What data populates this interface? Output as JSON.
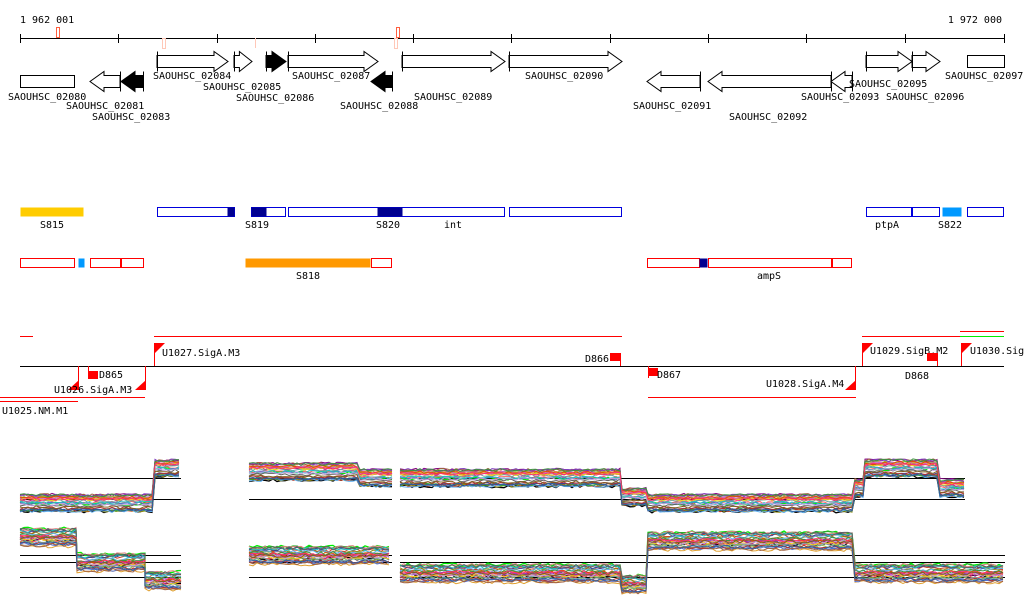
{
  "ruler": {
    "start_label": "1 962 001",
    "end_label": "1 972 000"
  },
  "genes": [
    {
      "name": "SAOUHSC_02080",
      "strand": "-",
      "fill": "white"
    },
    {
      "name": "SAOUHSC_02081",
      "strand": "-",
      "fill": "white"
    },
    {
      "name": "SAOUHSC_02083",
      "strand": "-",
      "fill": "black"
    },
    {
      "name": "SAOUHSC_02084",
      "strand": "+",
      "fill": "white"
    },
    {
      "name": "SAOUHSC_02085",
      "strand": "+",
      "fill": "white"
    },
    {
      "name": "SAOUHSC_02086",
      "strand": "+",
      "fill": "black"
    },
    {
      "name": "SAOUHSC_02087",
      "strand": "+",
      "fill": "white"
    },
    {
      "name": "SAOUHSC_02088",
      "strand": "-",
      "fill": "black"
    },
    {
      "name": "SAOUHSC_02089",
      "strand": "+",
      "fill": "white"
    },
    {
      "name": "SAOUHSC_02090",
      "strand": "+",
      "fill": "white"
    },
    {
      "name": "SAOUHSC_02091",
      "strand": "-",
      "fill": "white"
    },
    {
      "name": "SAOUHSC_02092",
      "strand": "-",
      "fill": "white"
    },
    {
      "name": "SAOUHSC_02093",
      "strand": "-",
      "fill": "white"
    },
    {
      "name": "SAOUHSC_02095",
      "strand": "+",
      "fill": "white"
    },
    {
      "name": "SAOUHSC_02096",
      "strand": "+",
      "fill": "white"
    },
    {
      "name": "SAOUHSC_02097",
      "strand": "+",
      "fill": "white"
    }
  ],
  "feature_labels": {
    "plus": [
      "S815",
      "S819",
      "S820",
      "int",
      "ptpA",
      "S822"
    ],
    "minus": [
      "S818",
      "ampS"
    ]
  },
  "sites": [
    "U1027.SigA.M3",
    "D865",
    "U1026.SigA.M3",
    "U1025.NM.M1",
    "D866",
    "D867",
    "U1028.SigA.M4",
    "U1029.SigB.M2",
    "D868",
    "U1030.Sig"
  ],
  "colors": {
    "plus_outline": "#0000DD",
    "navy": "#000090",
    "minus_outline": "#FF0000",
    "yellow": "#FFCC00",
    "orange": "#FF9900",
    "light_blue": "#0099FF",
    "site": "#FF0000",
    "green": "#00EE00",
    "tick_marker": "#FF6040",
    "tick_marker_light": "#FFC8B8"
  },
  "expression": {
    "line_colors": [
      "#000000",
      "#00ee00",
      "#a0a0c8",
      "#800080",
      "#d04020",
      "#8a8a10",
      "#60b0f0",
      "#ff6060",
      "#30a030",
      "#c06000",
      "#c02080",
      "#404090",
      "#e08080",
      "#90c040",
      "#e0a030",
      "#5070d0",
      "#b03030",
      "#70a0a0",
      "#d060d0",
      "#a06040",
      "#20c0c0",
      "#606060",
      "#f0d020",
      "#8040c0",
      "#e05000",
      "#409040",
      "#c0a0e0",
      "#ff3070",
      "#806020",
      "#3060a0"
    ],
    "upper_levels": [
      0.62,
      0.2,
      0.3,
      0.3,
      0.45,
      0.72,
      0.78,
      0.2,
      0.45,
      0.35
    ],
    "lower_levels": [
      0.25,
      0.45,
      0.75,
      0.45,
      0.7,
      0.8,
      0.3,
      0.7
    ]
  }
}
